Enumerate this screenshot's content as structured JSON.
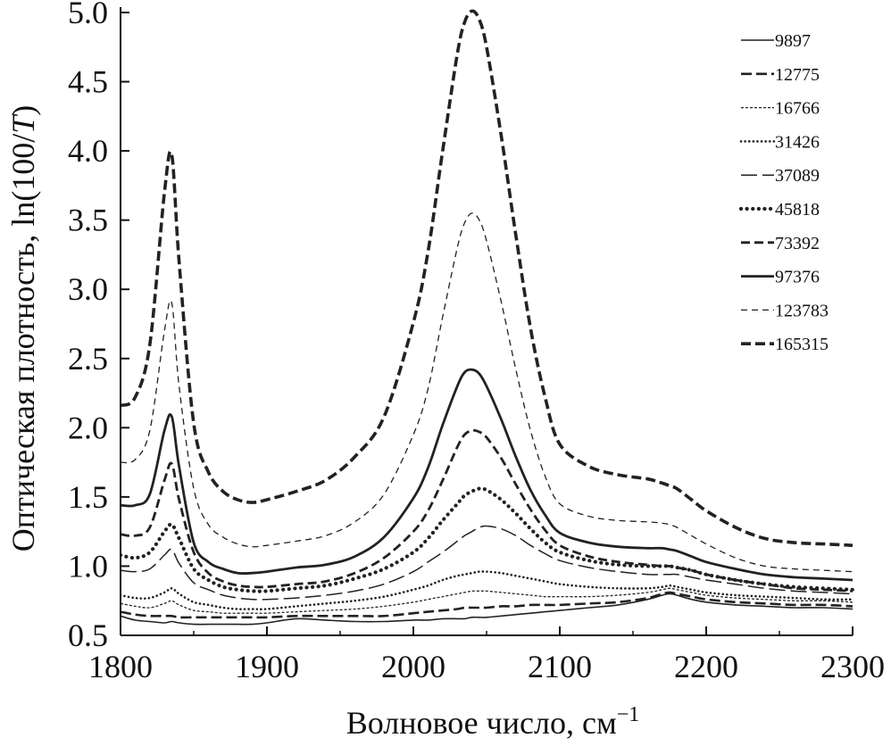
{
  "chart_data": {
    "type": "line",
    "xlabel": "Волновое число, см",
    "xlabel_sup": "−1",
    "ylabel_prefix": "Оптическая плотность, ln(100/",
    "ylabel_var": "T",
    "ylabel_suffix": ")",
    "xlim": [
      1800,
      2300
    ],
    "ylim": [
      0.5,
      5.0
    ],
    "x_ticks": [
      1800,
      1900,
      2000,
      2100,
      2200,
      2300
    ],
    "y_ticks": [
      "0.5",
      "1.0",
      "1.5",
      "2.0",
      "2.5",
      "3.0",
      "3.5",
      "4.0",
      "4.5",
      "5.0"
    ],
    "grid": false,
    "legend_position": "top-right",
    "x": [
      1800,
      1810,
      1820,
      1830,
      1835,
      1840,
      1850,
      1860,
      1870,
      1880,
      1890,
      1900,
      1920,
      1940,
      1960,
      1980,
      2000,
      2010,
      2020,
      2030,
      2035,
      2040,
      2045,
      2050,
      2060,
      2070,
      2080,
      2090,
      2100,
      2120,
      2140,
      2160,
      2170,
      2175,
      2180,
      2190,
      2200,
      2220,
      2240,
      2260,
      2280,
      2300
    ],
    "series": [
      {
        "name": "9897",
        "style": "solid-thin",
        "values": [
          0.64,
          0.61,
          0.6,
          0.59,
          0.6,
          0.59,
          0.58,
          0.58,
          0.58,
          0.58,
          0.58,
          0.59,
          0.62,
          0.61,
          0.6,
          0.6,
          0.61,
          0.61,
          0.62,
          0.62,
          0.62,
          0.63,
          0.63,
          0.63,
          0.64,
          0.65,
          0.66,
          0.67,
          0.68,
          0.7,
          0.72,
          0.76,
          0.79,
          0.8,
          0.79,
          0.76,
          0.74,
          0.72,
          0.71,
          0.7,
          0.7,
          0.69
        ]
      },
      {
        "name": "12775",
        "style": "dash-medium",
        "values": [
          0.67,
          0.65,
          0.64,
          0.64,
          0.64,
          0.63,
          0.63,
          0.63,
          0.63,
          0.63,
          0.63,
          0.63,
          0.64,
          0.64,
          0.64,
          0.64,
          0.66,
          0.67,
          0.68,
          0.69,
          0.7,
          0.7,
          0.7,
          0.7,
          0.71,
          0.71,
          0.72,
          0.72,
          0.72,
          0.73,
          0.74,
          0.77,
          0.8,
          0.81,
          0.8,
          0.78,
          0.76,
          0.74,
          0.73,
          0.72,
          0.72,
          0.71
        ]
      },
      {
        "name": "16766",
        "style": "dash-fine",
        "values": [
          0.73,
          0.71,
          0.7,
          0.73,
          0.75,
          0.72,
          0.68,
          0.67,
          0.66,
          0.66,
          0.66,
          0.66,
          0.67,
          0.68,
          0.69,
          0.71,
          0.74,
          0.76,
          0.78,
          0.8,
          0.81,
          0.82,
          0.82,
          0.82,
          0.81,
          0.8,
          0.79,
          0.78,
          0.78,
          0.78,
          0.79,
          0.81,
          0.83,
          0.84,
          0.83,
          0.81,
          0.79,
          0.77,
          0.76,
          0.75,
          0.75,
          0.74
        ]
      },
      {
        "name": "31426",
        "style": "dotted",
        "values": [
          0.79,
          0.77,
          0.77,
          0.81,
          0.84,
          0.8,
          0.74,
          0.72,
          0.7,
          0.69,
          0.69,
          0.69,
          0.71,
          0.73,
          0.75,
          0.78,
          0.83,
          0.86,
          0.9,
          0.93,
          0.94,
          0.95,
          0.96,
          0.96,
          0.95,
          0.93,
          0.91,
          0.89,
          0.87,
          0.85,
          0.84,
          0.84,
          0.85,
          0.86,
          0.85,
          0.83,
          0.81,
          0.79,
          0.78,
          0.77,
          0.76,
          0.76
        ]
      },
      {
        "name": "37089",
        "style": "long-dash",
        "values": [
          0.97,
          0.96,
          0.98,
          1.08,
          1.12,
          1.02,
          0.88,
          0.83,
          0.79,
          0.77,
          0.76,
          0.76,
          0.77,
          0.79,
          0.82,
          0.87,
          0.96,
          1.03,
          1.1,
          1.18,
          1.22,
          1.25,
          1.28,
          1.29,
          1.27,
          1.22,
          1.15,
          1.09,
          1.04,
          0.99,
          0.96,
          0.94,
          0.94,
          0.94,
          0.94,
          0.92,
          0.9,
          0.87,
          0.84,
          0.82,
          0.81,
          0.8
        ]
      },
      {
        "name": "45818",
        "style": "bold-dotted",
        "values": [
          1.08,
          1.06,
          1.1,
          1.25,
          1.3,
          1.2,
          0.98,
          0.9,
          0.85,
          0.83,
          0.82,
          0.82,
          0.84,
          0.86,
          0.91,
          0.98,
          1.1,
          1.2,
          1.33,
          1.45,
          1.51,
          1.54,
          1.56,
          1.55,
          1.48,
          1.38,
          1.27,
          1.17,
          1.1,
          1.04,
          1.01,
          1.0,
          1.0,
          1.0,
          0.99,
          0.97,
          0.94,
          0.9,
          0.87,
          0.85,
          0.84,
          0.83
        ]
      },
      {
        "name": "73392",
        "style": "dash-bold",
        "values": [
          1.23,
          1.22,
          1.28,
          1.62,
          1.74,
          1.48,
          1.1,
          0.95,
          0.89,
          0.86,
          0.85,
          0.85,
          0.87,
          0.89,
          0.95,
          1.06,
          1.25,
          1.4,
          1.62,
          1.86,
          1.95,
          1.98,
          1.97,
          1.93,
          1.78,
          1.59,
          1.41,
          1.26,
          1.15,
          1.07,
          1.03,
          1.01,
          1.0,
          1.0,
          0.99,
          0.97,
          0.94,
          0.9,
          0.87,
          0.84,
          0.83,
          0.82
        ]
      },
      {
        "name": "97376",
        "style": "solid-thick",
        "values": [
          1.44,
          1.44,
          1.52,
          1.98,
          2.08,
          1.72,
          1.17,
          1.03,
          0.98,
          0.95,
          0.95,
          0.96,
          0.99,
          1.01,
          1.07,
          1.21,
          1.49,
          1.71,
          2.02,
          2.3,
          2.4,
          2.42,
          2.39,
          2.3,
          2.06,
          1.79,
          1.55,
          1.37,
          1.24,
          1.17,
          1.14,
          1.13,
          1.13,
          1.12,
          1.11,
          1.07,
          1.03,
          0.98,
          0.94,
          0.92,
          0.91,
          0.9
        ]
      },
      {
        "name": "123783",
        "style": "dash-thin",
        "values": [
          1.75,
          1.77,
          1.98,
          2.7,
          2.9,
          2.3,
          1.56,
          1.3,
          1.21,
          1.16,
          1.14,
          1.15,
          1.18,
          1.22,
          1.32,
          1.52,
          1.95,
          2.28,
          2.8,
          3.3,
          3.48,
          3.55,
          3.5,
          3.35,
          2.91,
          2.42,
          1.98,
          1.65,
          1.45,
          1.36,
          1.33,
          1.32,
          1.31,
          1.3,
          1.28,
          1.22,
          1.16,
          1.06,
          1.0,
          0.98,
          0.97,
          0.96
        ]
      },
      {
        "name": "165315",
        "style": "dash-heavy",
        "values": [
          2.16,
          2.22,
          2.6,
          3.7,
          3.97,
          3.2,
          2.03,
          1.68,
          1.54,
          1.48,
          1.46,
          1.48,
          1.54,
          1.62,
          1.79,
          2.08,
          2.76,
          3.27,
          4.0,
          4.7,
          4.93,
          5.01,
          4.95,
          4.75,
          4.11,
          3.39,
          2.72,
          2.22,
          1.88,
          1.72,
          1.66,
          1.63,
          1.6,
          1.58,
          1.56,
          1.48,
          1.4,
          1.28,
          1.2,
          1.17,
          1.16,
          1.15
        ]
      }
    ]
  }
}
